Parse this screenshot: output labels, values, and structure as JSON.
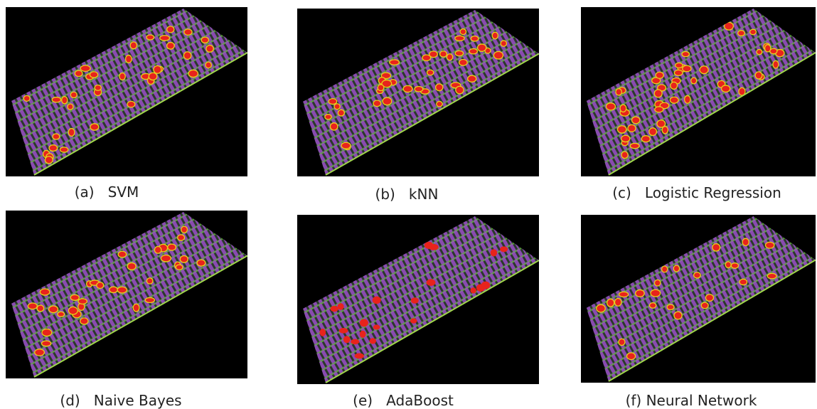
{
  "panels": [
    {
      "caption": "(a)   SVM"
    },
    {
      "caption": "(b)   kNN"
    },
    {
      "caption": "(c)   Logistic Regression"
    },
    {
      "caption": "(d)   Naive Bayes"
    },
    {
      "caption": "(e)   AdaBoost"
    },
    {
      "caption": "(f) Neural Network"
    }
  ]
}
